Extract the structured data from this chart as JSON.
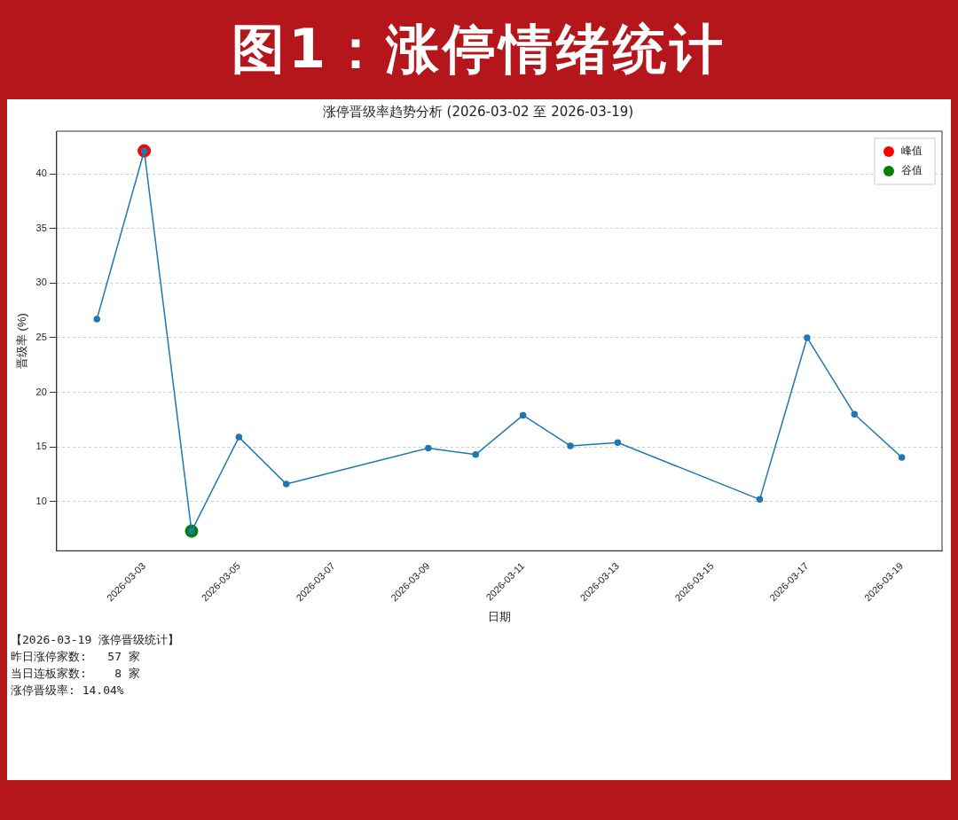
{
  "chart_data": {
    "type": "line",
    "title": "图1：涨停情绪统计",
    "subtitle": "涨停晋级率趋势分析 (2026-03-02 至 2026-03-19)",
    "xlabel": "日期",
    "ylabel": "晋级率 (%)",
    "series": [
      {
        "color": "#1f77b4",
        "type": "line",
        "x": [
          "2026-03-02",
          "2026-03-03",
          "2026-03-04",
          "2026-03-05",
          "2026-03-06",
          "2026-03-09",
          "2026-03-10",
          "2026-03-11",
          "2026-03-12",
          "2026-03-13",
          "2026-03-16",
          "2026-03-17",
          "2026-03-18",
          "2026-03-19"
        ],
        "values": [
          26.7,
          42.1,
          7.3,
          15.9,
          11.6,
          14.9,
          14.3,
          17.9,
          15.1,
          15.4,
          10.2,
          25.0,
          18.0,
          14.04
        ]
      },
      {
        "name": "峰值",
        "color": "#ff0000",
        "type": "scatter",
        "x": [
          "2026-03-03"
        ],
        "values": [
          42.1
        ]
      },
      {
        "name": "谷值",
        "color": "#008000",
        "type": "scatter",
        "x": [
          "2026-03-04"
        ],
        "values": [
          7.3
        ]
      }
    ],
    "xlim": [
      "2026-03-01T03:36",
      "2026-03-19T20:24"
    ],
    "xticks": [
      "2026-03-03",
      "2026-03-05",
      "2026-03-07",
      "2026-03-09",
      "2026-03-11",
      "2026-03-13",
      "2026-03-15",
      "2026-03-17",
      "2026-03-19"
    ],
    "ylim": [
      5.5,
      43.9
    ],
    "yticks": [
      10,
      15,
      20,
      25,
      30,
      35,
      40
    ],
    "grid": "y",
    "legend": "top right",
    "marker": "circle",
    "annotations": [
      "【2026-03-19 涨停晋级统计】",
      "昨日涨停家数:   57 家",
      "当日连板家数:    8 家",
      "涨停晋级率: 14.04%"
    ]
  }
}
